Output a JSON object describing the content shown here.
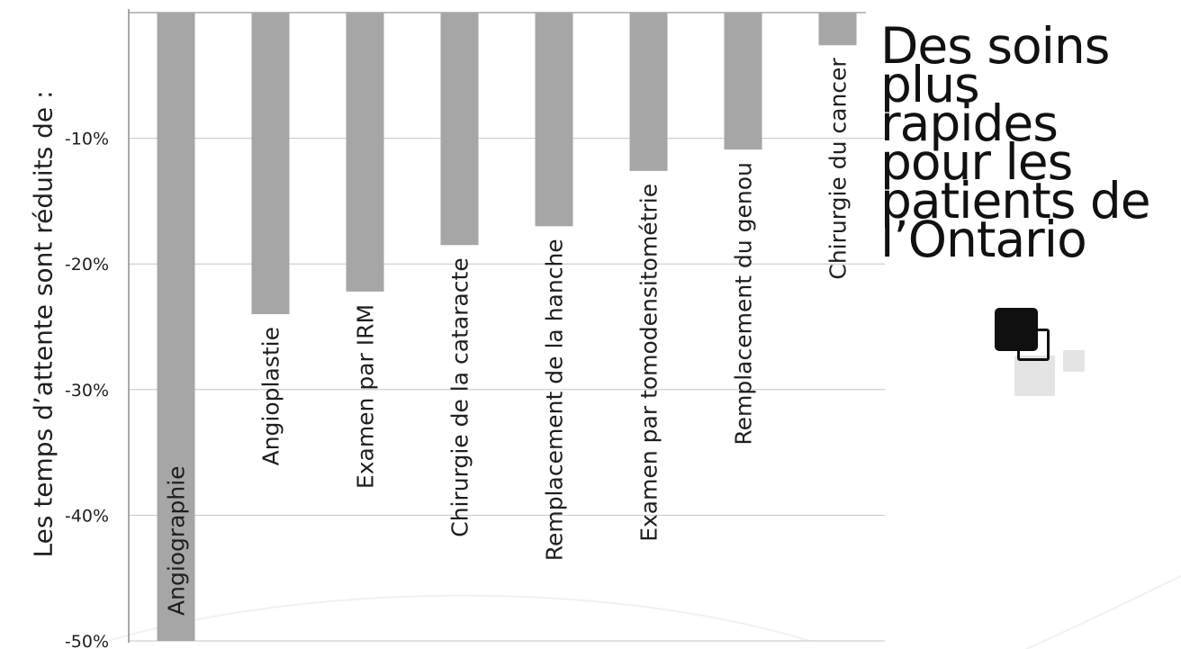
{
  "chart_data": {
    "type": "bar",
    "title": "",
    "xlabel": "",
    "ylabel": "Les temps d’attente sont réduits de :",
    "categories": [
      "Angiographie",
      "Angioplastie",
      "Examen par IRM",
      "Chirurgie de la cataracte",
      "Remplacement de la hanche",
      "Examen par tomodensitométrie",
      "Remplacement du genou",
      "Chirurgie du cancer"
    ],
    "values": [
      -50,
      -24,
      -22.2,
      -18.5,
      -17,
      -12.6,
      -10.9,
      -2.6
    ],
    "ylim": [
      -50,
      0
    ],
    "yticks": [
      -10,
      -20,
      -30,
      -40,
      -50
    ],
    "ytick_labels": [
      "-10%",
      "-20%",
      "-30%",
      "-40%",
      "-50%"
    ],
    "grid": true,
    "bar_color": "#a6a6a6",
    "grid_color": "#c6c6c6"
  },
  "side_title": {
    "lines": [
      "Des soins",
      "plus",
      "rapides",
      "pour les",
      "patients de",
      "l’Ontario"
    ]
  }
}
